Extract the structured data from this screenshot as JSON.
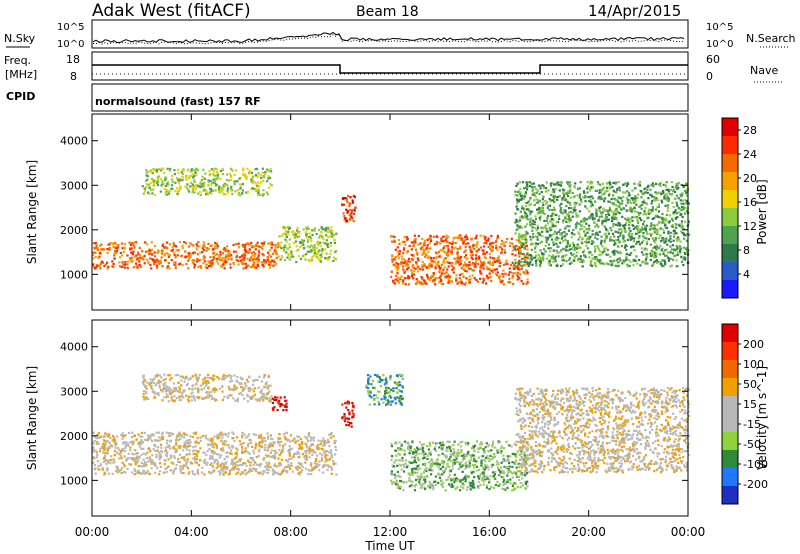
{
  "header": {
    "station": "Adak West (fitACF)",
    "beam": "Beam 18",
    "date": "14/Apr/2015"
  },
  "summary_panels": {
    "nsky_label": "N.Sky",
    "nsearch_label": "N.Search",
    "noise_ticks": [
      "10^5",
      "10^0"
    ],
    "freq_label_1": "Freq.",
    "freq_label_2": "[MHz]",
    "freq_ticks": [
      "18",
      "8"
    ],
    "nave_label": "Nave",
    "nave_ticks": [
      "60",
      "0"
    ],
    "cpid_label": "CPID",
    "cpid_text": "normalsound (fast) 157 RF"
  },
  "colors": {
    "power": [
      "#1a1aff",
      "#2a5cc8",
      "#2f7a4a",
      "#4fa24f",
      "#8ccc3c",
      "#f0d000",
      "#f7a000",
      "#f56a00",
      "#ff2a00",
      "#e00000"
    ],
    "velocity": [
      "#1f30c0",
      "#1f78ff",
      "#2f8a3a",
      "#8fd23a",
      "#b8b8b8",
      "#b8b8b8",
      "#f0a000",
      "#f06800",
      "#ff3000",
      "#e00000"
    ],
    "ground": "#b8b8b8"
  },
  "chart_data": [
    {
      "type": "heatmap",
      "title": "",
      "xlabel": "Time UT",
      "ylabel": "Slant Range [km]",
      "x_ticks": [
        "00:00",
        "04:00",
        "08:00",
        "12:00",
        "16:00",
        "20:00",
        "00:00"
      ],
      "y_ticks": [
        "1000",
        "2000",
        "3000",
        "4000"
      ],
      "ylim": [
        200,
        4600
      ],
      "xlim_hours": [
        0,
        24
      ],
      "colorbar": {
        "label": "Power [dB]",
        "ticks": [
          "4",
          "8",
          "12",
          "16",
          "20",
          "24",
          "28"
        ],
        "range": [
          0,
          30
        ]
      },
      "echo_regions": [
        {
          "name": "evening band low",
          "t": [
            0,
            7.5
          ],
          "range": [
            1150,
            1750
          ],
          "level": 22
        },
        {
          "name": "evening band ext",
          "t": [
            7.5,
            9.8
          ],
          "range": [
            1300,
            2100
          ],
          "level": 12
        },
        {
          "name": "upper F echoes",
          "t": [
            2.0,
            7.2
          ],
          "range": [
            2800,
            3400
          ],
          "level": 12
        },
        {
          "name": "midnight patch",
          "t": [
            10.0,
            10.6
          ],
          "range": [
            2200,
            2800
          ],
          "level": 26
        },
        {
          "name": "dawn tilt band",
          "t": [
            12.0,
            17.5
          ],
          "range": [
            800,
            1900
          ],
          "level": 22
        },
        {
          "name": "late echoes",
          "t": [
            17.0,
            24.0
          ],
          "range": [
            1200,
            3100
          ],
          "level": 10
        }
      ]
    },
    {
      "type": "heatmap",
      "title": "",
      "xlabel": "Time UT",
      "ylabel": "Slant Range [km]",
      "x_ticks": [
        "00:00",
        "04:00",
        "08:00",
        "12:00",
        "16:00",
        "20:00",
        "00:00"
      ],
      "y_ticks": [
        "1000",
        "2000",
        "3000",
        "4000"
      ],
      "ylim": [
        200,
        4600
      ],
      "xlim_hours": [
        0,
        24
      ],
      "colorbar": {
        "label": "Velocity [m s^-1]",
        "ticks": [
          "200",
          "100",
          "50",
          "15",
          "-15",
          "-50",
          "-100",
          "-200"
        ],
        "range": [
          -250,
          250
        ]
      },
      "echo_regions": [
        {
          "name": "ground scatter band",
          "t": [
            0,
            9.8
          ],
          "range": [
            1150,
            2100
          ],
          "velocity": 0
        },
        {
          "name": "upper F echoes",
          "t": [
            2.0,
            7.2
          ],
          "range": [
            2800,
            3400
          ],
          "velocity": -20
        },
        {
          "name": "red patch 1",
          "t": [
            7.2,
            7.8
          ],
          "range": [
            2600,
            2900
          ],
          "velocity": -200
        },
        {
          "name": "red patch 2",
          "t": [
            10.0,
            10.5
          ],
          "range": [
            2200,
            2800
          ],
          "velocity": -200
        },
        {
          "name": "dawn flow",
          "t": [
            12.0,
            17.5
          ],
          "range": [
            800,
            1900
          ],
          "velocity": 60
        },
        {
          "name": "blue arc",
          "t": [
            11.0,
            12.5
          ],
          "range": [
            2700,
            3400
          ],
          "velocity": 150
        },
        {
          "name": "late echoes",
          "t": [
            17.0,
            24.0
          ],
          "range": [
            1200,
            3100
          ],
          "velocity": 0
        }
      ]
    }
  ]
}
